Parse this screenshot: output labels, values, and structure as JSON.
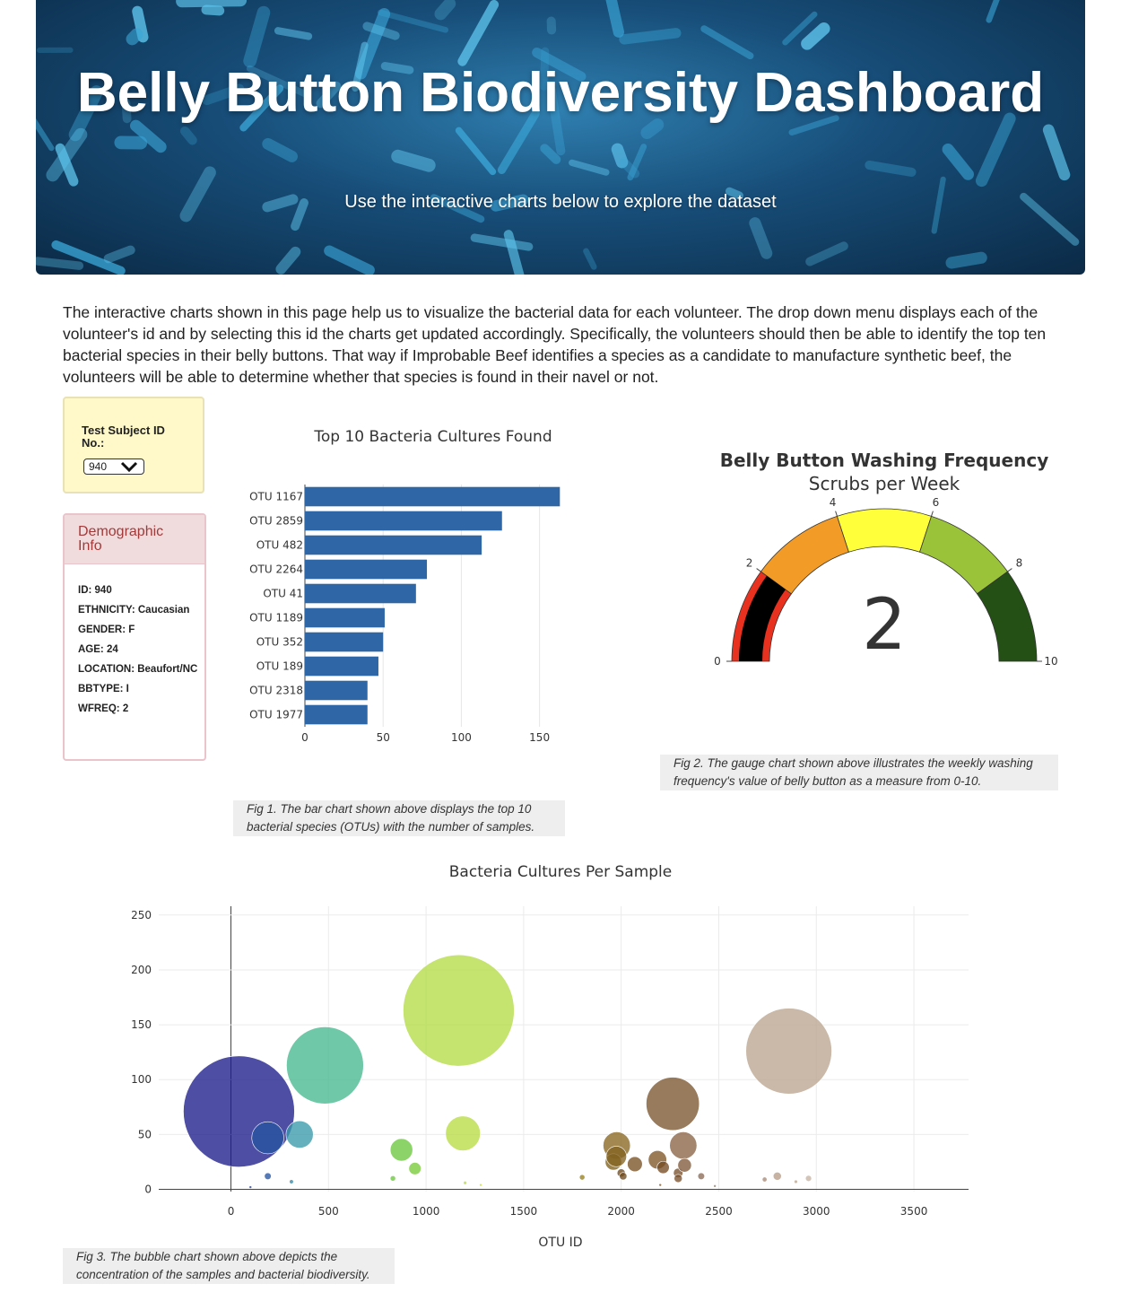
{
  "header": {
    "title": "Belly Button Biodiversity Dashboard",
    "subtitle": "Use the interactive charts below to explore the dataset"
  },
  "intro": "The interactive charts shown in this page help us to visualize the bacterial data for each volunteer. The drop down menu displays each of the volunteer's id and by selecting this id the charts get updated accordingly. Specifically, the volunteers should then be able to identify the top ten bacterial species in their belly buttons. That way if Improbable Beef identifies a species as a candidate to manufacture synthetic beef, the volunteers will be able to determine whether that species is found in their navel or not.",
  "selector": {
    "label": "Test Subject ID No.:",
    "value": "940"
  },
  "demographic": {
    "title": "Demographic Info",
    "rows": [
      "ID: 940",
      "ETHNICITY: Caucasian",
      "GENDER: F",
      "AGE: 24",
      "LOCATION: Beaufort/NC",
      "BBTYPE: I",
      "WFREQ: 2"
    ]
  },
  "captions": {
    "fig1": "Fig 1. The bar chart shown above displays the top 10 bacterial species (OTUs) with the number of samples.",
    "fig2": "Fig 2. The gauge chart shown above illustrates the weekly washing frequency's value of belly button as a measure from 0-10.",
    "fig3": "Fig 3. The bubble chart shown above depicts the concentration of the samples and bacterial biodiversity."
  },
  "chart_data": [
    {
      "type": "bar",
      "orientation": "horizontal",
      "title": "Top 10 Bacteria Cultures Found",
      "categories": [
        "OTU 1167",
        "OTU 2859",
        "OTU 482",
        "OTU 2264",
        "OTU 41",
        "OTU 1189",
        "OTU 352",
        "OTU 189",
        "OTU 2318",
        "OTU 1977"
      ],
      "values": [
        163,
        126,
        113,
        78,
        71,
        51,
        50,
        47,
        40,
        40
      ],
      "xlim": [
        0,
        172
      ],
      "xticks": [
        0,
        50,
        100,
        150
      ],
      "color": "#2f67a6",
      "grid": true
    },
    {
      "type": "gauge",
      "title": "Belly Button Washing Frequency",
      "subtitle": "Scrubs per Week",
      "value": 2,
      "range": [
        0,
        10
      ],
      "ticks": [
        0,
        2,
        4,
        6,
        8,
        10
      ],
      "bands": [
        {
          "from": 0,
          "to": 2,
          "color": "#e8321f"
        },
        {
          "from": 2,
          "to": 4,
          "color": "#f29b27"
        },
        {
          "from": 4,
          "to": 6,
          "color": "#ffff3a"
        },
        {
          "from": 6,
          "to": 8,
          "color": "#9bc33a"
        },
        {
          "from": 8,
          "to": 10,
          "color": "#245015"
        }
      ],
      "bar_color": "#000000"
    },
    {
      "type": "scatter",
      "subtype": "bubble",
      "title": "Bacteria Cultures Per Sample",
      "xlabel": "OTU ID",
      "ylabel": "",
      "xlim": [
        -370,
        3780
      ],
      "ylim": [
        -2,
        258
      ],
      "xticks": [
        0,
        500,
        1000,
        1500,
        2000,
        2500,
        3000,
        3500
      ],
      "yticks": [
        0,
        50,
        100,
        150,
        200,
        250
      ],
      "grid": true,
      "points": [
        {
          "x": 41,
          "y": 71,
          "color": "#1c1c8a"
        },
        {
          "x": 189,
          "y": 47,
          "color": "#2755a0"
        },
        {
          "x": 352,
          "y": 50,
          "color": "#3a9aaa"
        },
        {
          "x": 482,
          "y": 113,
          "color": "#46b98f"
        },
        {
          "x": 1167,
          "y": 163,
          "color": "#b3db47"
        },
        {
          "x": 1189,
          "y": 51,
          "color": "#b8dc44"
        },
        {
          "x": 874,
          "y": 36,
          "color": "#6cc83f"
        },
        {
          "x": 943,
          "y": 19,
          "color": "#79cb3a"
        },
        {
          "x": 2264,
          "y": 78,
          "color": "#7b5430"
        },
        {
          "x": 2859,
          "y": 126,
          "color": "#bba58f"
        },
        {
          "x": 1977,
          "y": 40,
          "color": "#8a6620"
        },
        {
          "x": 2318,
          "y": 40,
          "color": "#8a6446"
        },
        {
          "x": 1960,
          "y": 25,
          "color": "#80621d"
        },
        {
          "x": 1975,
          "y": 30,
          "color": "#836321"
        },
        {
          "x": 2070,
          "y": 23,
          "color": "#7a5224"
        },
        {
          "x": 2186,
          "y": 27,
          "color": "#7d5627"
        },
        {
          "x": 2215,
          "y": 20,
          "color": "#744b22"
        },
        {
          "x": 2292,
          "y": 15,
          "color": "#7a5230"
        },
        {
          "x": 2325,
          "y": 22,
          "color": "#80593a"
        },
        {
          "x": 2000,
          "y": 15,
          "color": "#6f4a1d"
        },
        {
          "x": 2410,
          "y": 12,
          "color": "#8a6a56"
        },
        {
          "x": 189,
          "y": 12,
          "color": "#2755a0"
        },
        {
          "x": 1800,
          "y": 11,
          "color": "#97801f"
        },
        {
          "x": 830,
          "y": 10,
          "color": "#6cc83f"
        },
        {
          "x": 310,
          "y": 7,
          "color": "#358aa8"
        },
        {
          "x": 2800,
          "y": 12,
          "color": "#b89e88"
        },
        {
          "x": 2960,
          "y": 10,
          "color": "#c8b3a4"
        },
        {
          "x": 2735,
          "y": 9,
          "color": "#a88a74"
        },
        {
          "x": 2292,
          "y": 10,
          "color": "#7a5230"
        },
        {
          "x": 2010,
          "y": 12,
          "color": "#6f4a1d"
        },
        {
          "x": 1200,
          "y": 6,
          "color": "#b8dc44"
        },
        {
          "x": 2895,
          "y": 7,
          "color": "#bca591"
        },
        {
          "x": 1280,
          "y": 4,
          "color": "#c4df3e"
        },
        {
          "x": 2200,
          "y": 4,
          "color": "#7d5627"
        },
        {
          "x": 100,
          "y": 2,
          "color": "#1f3f97"
        },
        {
          "x": 2480,
          "y": 3,
          "color": "#958070"
        }
      ],
      "sizes": [
        163,
        47,
        40,
        113,
        163,
        51,
        33,
        18,
        78,
        126,
        40,
        40,
        24,
        30,
        22,
        27,
        18,
        14,
        20,
        12,
        10,
        10,
        8,
        8,
        6,
        12,
        9,
        7,
        12,
        11,
        5,
        5,
        4,
        4,
        3,
        3
      ]
    }
  ]
}
